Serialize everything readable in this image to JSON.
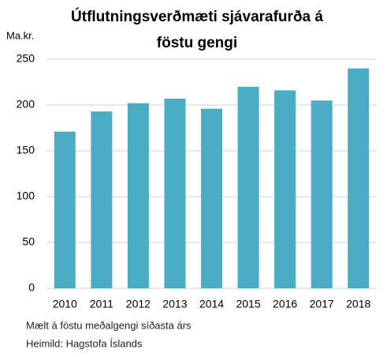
{
  "chart_data": {
    "type": "bar",
    "title": [
      "Útflutningsverðmæti sjávarafurða á",
      "föstu gengi"
    ],
    "y_label": "Ma.kr.",
    "categories": [
      "2010",
      "2011",
      "2012",
      "2013",
      "2014",
      "2015",
      "2016",
      "2017",
      "2018"
    ],
    "values": [
      171,
      193,
      202,
      207,
      196,
      220,
      216,
      205,
      240
    ],
    "color": "#4bacc6",
    "ylim": [
      0,
      250
    ],
    "yticks": [
      0,
      50,
      100,
      150,
      200,
      250
    ],
    "grid": true,
    "notes": [
      "Mælt á föstu meðalgengi síðasta árs",
      "Heimild: Hagstofa Íslands"
    ]
  }
}
